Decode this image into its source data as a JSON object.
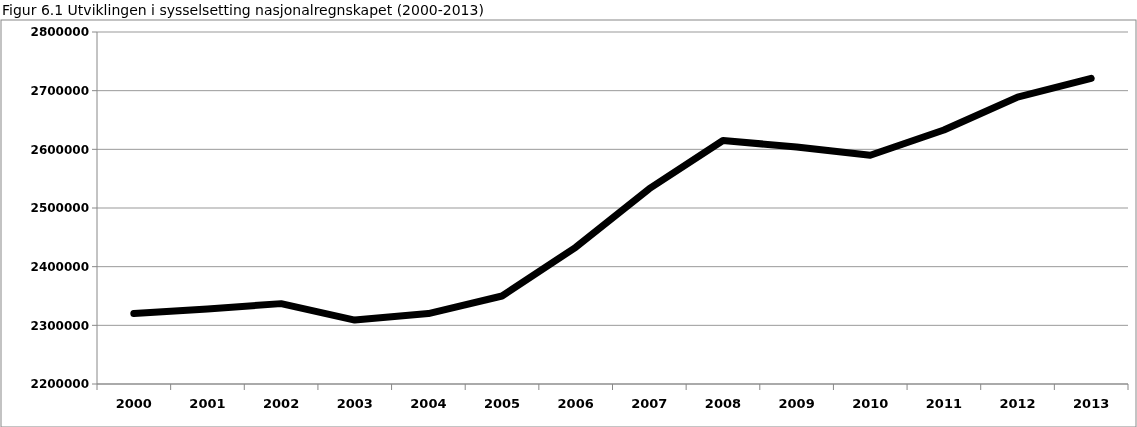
{
  "chart_data": {
    "type": "line",
    "title": "Figur 6.1 Utviklingen i sysselsetting nasjonalregnskapet (2000-2013)",
    "categories": [
      "2000",
      "2001",
      "2002",
      "2003",
      "2004",
      "2005",
      "2006",
      "2007",
      "2008",
      "2009",
      "2010",
      "2011",
      "2012",
      "2013"
    ],
    "series": [
      {
        "color": "#000000",
        "values": [
          2320000,
          2328000,
          2337000,
          2309000,
          2320000,
          2350000,
          2433000,
          2533000,
          2615000,
          2604000,
          2590000,
          2633000,
          2689000,
          2721000
        ]
      }
    ],
    "ylim": [
      2200000,
      2800000
    ],
    "yticks": [
      2200000,
      2300000,
      2400000,
      2500000,
      2600000,
      2700000,
      2800000
    ],
    "grid": "y"
  }
}
